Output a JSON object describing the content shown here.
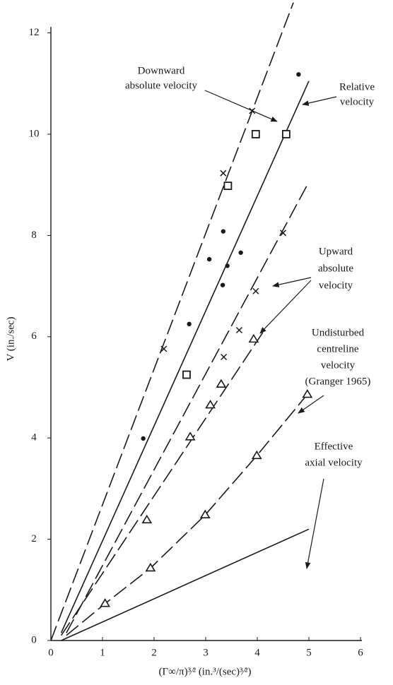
{
  "chart_data": {
    "type": "scatter",
    "xlabel": "(Γ∞/π)³⁄² (in.³/(sec)³⁄²)",
    "ylabel": "V (in./sec)",
    "xlim": [
      0,
      6
    ],
    "ylim": [
      0,
      12
    ],
    "xticks": [
      0,
      1,
      2,
      3,
      4,
      5,
      6
    ],
    "yticks": [
      0,
      2,
      4,
      6,
      8,
      10,
      12
    ],
    "grid": false,
    "series": [
      {
        "marker": "cross",
        "color": "#1a1a1a",
        "x": [
          2.19,
          3.9,
          3.34,
          3.35,
          3.65,
          3.97,
          4.5
        ],
        "values": [
          5.76,
          10.46,
          9.23,
          5.6,
          6.13,
          6.9,
          8.05
        ]
      },
      {
        "marker": "dot",
        "color": "#1a1a1a",
        "x": [
          1.79,
          2.68,
          3.07,
          3.34,
          3.33,
          3.42,
          3.68,
          4.8
        ],
        "values": [
          3.99,
          6.25,
          7.53,
          8.08,
          7.02,
          7.4,
          7.66,
          11.18
        ]
      },
      {
        "marker": "square",
        "color": "#1a1a1a",
        "x": [
          2.63,
          3.43,
          3.97,
          4.56
        ],
        "values": [
          5.25,
          8.98,
          10.0,
          10.0
        ]
      },
      {
        "marker": "triangle",
        "color": "#1a1a1a",
        "x": [
          1.86,
          2.7,
          3.09,
          3.3,
          3.93
        ],
        "values": [
          2.38,
          4.02,
          4.65,
          5.06,
          5.95
        ]
      },
      {
        "marker": "triangle",
        "color": "#1a1a1a",
        "x": [
          1.05,
          1.93,
          2.99,
          3.99,
          4.97
        ],
        "values": [
          0.73,
          1.43,
          2.48,
          3.65,
          4.86
        ]
      }
    ],
    "lines": [
      {
        "style": "dashed",
        "color": "#1a1a1a",
        "x": [
          0,
          4.7
        ],
        "values": [
          0,
          12.6
        ]
      },
      {
        "style": "solid",
        "color": "#1a1a1a",
        "x": [
          0.2,
          5.0
        ],
        "values": [
          0.15,
          11.05
        ]
      },
      {
        "style": "dashed",
        "color": "#1a1a1a",
        "x": [
          0.3,
          4.97
        ],
        "values": [
          0.15,
          9.0
        ]
      },
      {
        "style": "dashed",
        "color": "#1a1a1a",
        "x": [
          0.2,
          4.15
        ],
        "values": [
          0.1,
          6.15
        ]
      },
      {
        "style": "dashed",
        "color": "#1a1a1a",
        "x": [
          0.3,
          1.05,
          1.93,
          2.99,
          3.99,
          4.97
        ],
        "values": [
          0.1,
          0.73,
          1.43,
          2.48,
          3.65,
          4.86
        ]
      },
      {
        "style": "solid",
        "color": "#1a1a1a",
        "x": [
          0.2,
          5.0
        ],
        "values": [
          0.0,
          2.2
        ]
      }
    ],
    "annotations": [
      {
        "lines": [
          "Downward",
          "absolute velocity"
        ]
      },
      {
        "lines": [
          "Relative",
          "velocity"
        ]
      },
      {
        "lines": [
          "Upward",
          "absolute",
          "velocity"
        ]
      },
      {
        "lines": [
          "Undisturbed",
          "centreline",
          "velocity",
          "(Granger 1965)"
        ]
      },
      {
        "lines": [
          "Effective",
          "axial velocity"
        ]
      }
    ]
  }
}
